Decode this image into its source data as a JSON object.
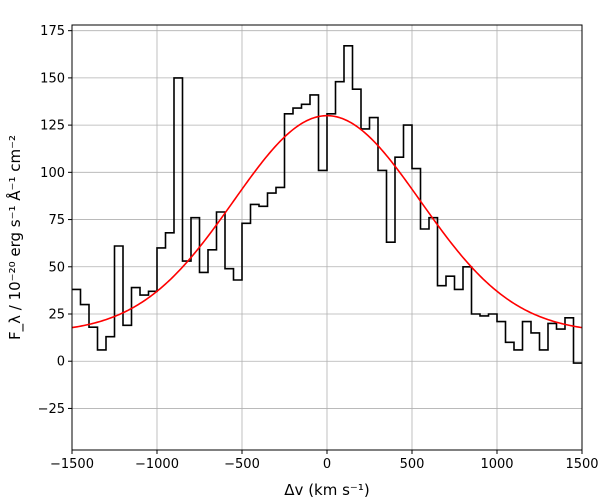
{
  "chart_data": {
    "type": "line",
    "xlabel": "Δv (km s⁻¹)",
    "ylabel": "F_λ / 10⁻²⁰ erg s⁻¹ Å⁻¹ cm⁻²",
    "xlim": [
      -1500,
      1500
    ],
    "ylim": [
      -47,
      178
    ],
    "xticks": [
      -1500,
      -1000,
      -500,
      0,
      500,
      1000,
      1500
    ],
    "yticks": [
      -25,
      0,
      25,
      50,
      75,
      100,
      125,
      150,
      175
    ],
    "grid": true,
    "series": [
      {
        "kind": "step",
        "color": "#000000",
        "bin_width": 50,
        "x": [
          -1500,
          -1450,
          -1400,
          -1350,
          -1300,
          -1250,
          -1200,
          -1150,
          -1100,
          -1050,
          -1000,
          -950,
          -900,
          -850,
          -800,
          -750,
          -700,
          -650,
          -600,
          -550,
          -500,
          -450,
          -400,
          -350,
          -300,
          -250,
          -200,
          -150,
          -100,
          -50,
          0,
          50,
          100,
          150,
          200,
          250,
          300,
          350,
          400,
          450,
          500,
          550,
          600,
          650,
          700,
          750,
          800,
          850,
          900,
          950,
          1000,
          1050,
          1100,
          1150,
          1200,
          1250,
          1300,
          1350,
          1400,
          1450
        ],
        "y": [
          38,
          30,
          18,
          6,
          13,
          61,
          19,
          39,
          35,
          37,
          60,
          68,
          150,
          53,
          76,
          47,
          59,
          79,
          49,
          43,
          73,
          83,
          82,
          89,
          92,
          131,
          134,
          136,
          141,
          101,
          131,
          148,
          167,
          144,
          123,
          129,
          101,
          63,
          108,
          125,
          102,
          70,
          76,
          40,
          45,
          38,
          50,
          25,
          24,
          25,
          21,
          10,
          6,
          21,
          15,
          6,
          20,
          17,
          23,
          -1
        ]
      },
      {
        "kind": "gaussian",
        "color": "#ff0000",
        "amplitude": 115,
        "center": 0,
        "sigma": 550,
        "baseline": 15
      }
    ]
  }
}
